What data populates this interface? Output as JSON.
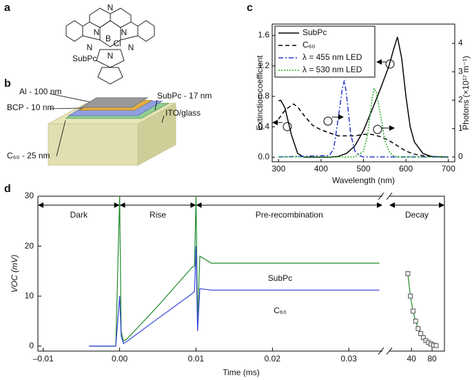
{
  "panel_labels": [
    "a",
    "b",
    "c",
    "d"
  ],
  "molecule": {
    "name": "SubPc",
    "atoms": [
      "N",
      "N",
      "N",
      "N",
      "N",
      "N",
      "B",
      "Cl"
    ]
  },
  "device": {
    "layers": [
      "Al - 100 nm",
      "BCP - 10 nm",
      "SubPc - 17 nm",
      "ITO/glass",
      "C₆₀ - 25 nm"
    ]
  },
  "chart_data": [
    {
      "type": "line",
      "xlabel": "Wavelength (nm)",
      "ylabel": "Extinction coefficient",
      "y2label": "Photons (×10¹⁷ m⁻¹)",
      "xlim": [
        285,
        715
      ],
      "xticks": [
        300,
        400,
        500,
        600,
        700
      ],
      "ylim": [
        -0.06,
        1.75
      ],
      "yticks": [
        {
          "value": 0,
          "label": "0.0"
        },
        0.4,
        0.8,
        1.2,
        1.6
      ],
      "y2lim": [
        -0.17,
        4.68
      ],
      "y2ticks": [
        0,
        1,
        2,
        3,
        4
      ],
      "legend": "top-left",
      "series": [
        {
          "name": "SubPc",
          "color": "#000000",
          "style": "solid",
          "x": [
            300,
            305,
            315,
            330,
            345,
            360,
            380,
            400,
            420,
            440,
            460,
            480,
            500,
            520,
            540,
            550,
            560,
            570,
            580,
            590,
            600,
            610,
            620,
            640,
            660,
            700
          ],
          "values": [
            0.74,
            0.75,
            0.65,
            0.3,
            0.05,
            0.0,
            0.0,
            0.0,
            0.0,
            0.01,
            0.05,
            0.15,
            0.35,
            0.62,
            0.9,
            1.05,
            1.2,
            1.4,
            1.58,
            1.3,
            0.8,
            0.4,
            0.2,
            0.05,
            0.01,
            0.0
          ]
        },
        {
          "name": "C₆₀",
          "color": "#000000",
          "style": "dashed",
          "x": [
            300,
            310,
            320,
            335,
            345,
            360,
            380,
            400,
            420,
            440,
            460,
            480,
            500,
            520,
            540,
            560,
            580,
            600,
            620,
            640,
            660,
            700
          ],
          "values": [
            0.5,
            0.58,
            0.64,
            0.7,
            0.66,
            0.55,
            0.42,
            0.36,
            0.32,
            0.28,
            0.28,
            0.28,
            0.3,
            0.3,
            0.27,
            0.22,
            0.15,
            0.08,
            0.04,
            0.02,
            0.01,
            0.0
          ]
        },
        {
          "name": "λ = 455 nm LED",
          "color": "#2233cc",
          "style": "dashdot",
          "axis": "y2",
          "x": [
            300,
            420,
            430,
            440,
            450,
            455,
            460,
            470,
            480,
            490,
            500,
            700
          ],
          "values": [
            0,
            0.05,
            0.3,
            1.3,
            2.4,
            2.7,
            2.2,
            0.8,
            0.2,
            0.05,
            0,
            0
          ]
        },
        {
          "name": "λ = 530 nm LED",
          "color": "#22aa22",
          "style": "dotted",
          "axis": "y2",
          "x": [
            300,
            480,
            500,
            510,
            520,
            525,
            530,
            540,
            550,
            560,
            570,
            580,
            700
          ],
          "values": [
            0,
            0,
            0.2,
            0.8,
            2.0,
            2.4,
            2.3,
            1.5,
            0.6,
            0.2,
            0.05,
            0,
            0
          ]
        }
      ]
    },
    {
      "type": "line",
      "xlabel": "Time (ms)",
      "ylabel": "VOC (mV)",
      "xlim": [
        -0.0107,
        0.0344
      ],
      "xticks": [
        {
          "value": -0.01,
          "label": "–0.01"
        },
        {
          "value": 0,
          "label": "0.00"
        },
        0.01,
        0.02,
        0.03
      ],
      "x2lim": [
        -3,
        104
      ],
      "x2ticks": [
        40,
        80
      ],
      "ylim": [
        -1,
        30
      ],
      "yticks": [
        0,
        10,
        20,
        30
      ],
      "regions": [
        {
          "label": "Dark",
          "x": [
            -0.0107,
            0
          ]
        },
        {
          "label": "Rise",
          "x": [
            0,
            0.01
          ]
        },
        {
          "label": "Pre-recombination",
          "x": [
            0.01,
            0.0344
          ]
        },
        {
          "label": "Decay",
          "axis": "x2",
          "x": [
            -3,
            104
          ]
        }
      ],
      "annotations": [
        {
          "text": "SubPc",
          "x": 0.021,
          "y": 13.5
        },
        {
          "text": "C₆₀",
          "x": 0.021,
          "y": 7
        }
      ],
      "series": [
        {
          "color": "#1e8a2a",
          "x": [
            -0.004,
            -0.0005,
            0.0,
            0.0002,
            0.0005,
            0.001,
            0.005,
            0.0095,
            0.0098,
            0.01,
            0.0102,
            0.0105,
            0.012,
            0.02,
            0.03,
            0.034
          ],
          "values": [
            0,
            0,
            30,
            3,
            1,
            1.5,
            8,
            15.8,
            16,
            30,
            5,
            18,
            16.6,
            16.6,
            16.6,
            16.6
          ]
        },
        {
          "color": "#3344dd",
          "x": [
            -0.004,
            -0.0005,
            0.0,
            0.0002,
            0.0005,
            0.001,
            0.005,
            0.0095,
            0.0098,
            0.01,
            0.0102,
            0.0105,
            0.012,
            0.02,
            0.03,
            0.034
          ],
          "values": [
            0,
            0,
            10,
            2,
            0.5,
            1,
            5.5,
            10.5,
            11,
            20,
            3,
            11.5,
            11.2,
            11.2,
            11.2,
            11.2
          ]
        },
        {
          "color": "#1e8a2a",
          "axis": "x2",
          "marker": "square",
          "x": [
            33,
            38,
            43,
            48,
            53,
            58,
            63,
            68,
            73,
            78,
            83,
            88
          ],
          "values": [
            14.5,
            10,
            7,
            5,
            3.5,
            2.5,
            1.7,
            1.1,
            0.7,
            0.4,
            0.2,
            0.1
          ]
        }
      ]
    }
  ]
}
